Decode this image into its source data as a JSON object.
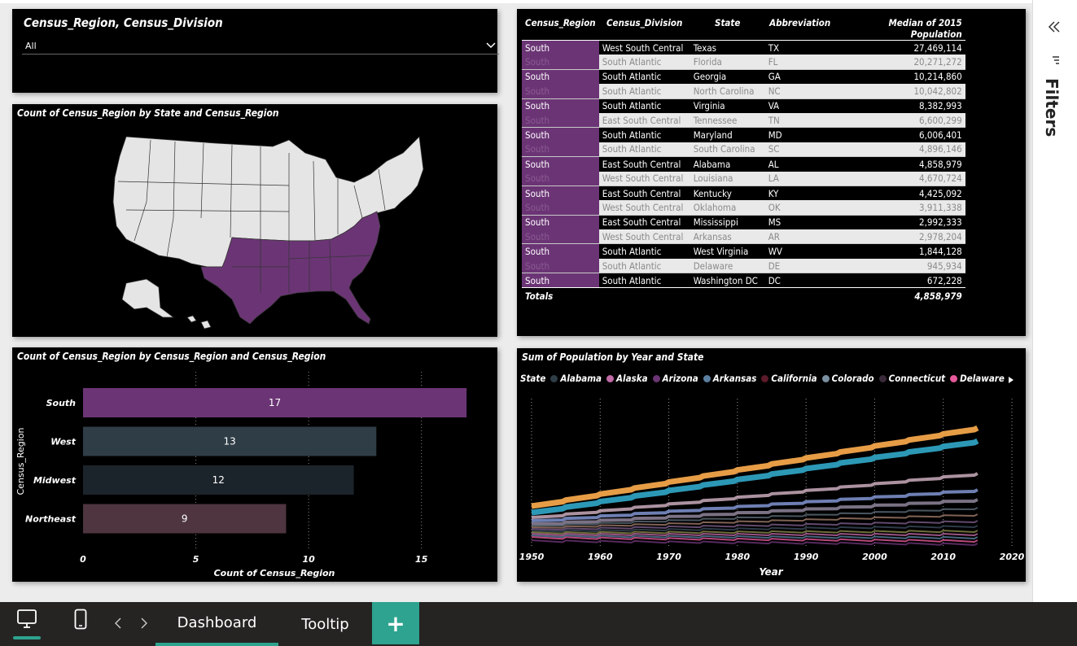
{
  "slicer": {
    "title": "Census_Region, Census_Division",
    "value": "All"
  },
  "map": {
    "title": "Count of Census_Region by State and Census_Region",
    "highlight_color": "#6b3575",
    "base_color": "#e5e5e5"
  },
  "table": {
    "headers": [
      "Census_Region",
      "Census_Division",
      "State",
      "Abbreviation",
      "Median of 2015 Population"
    ],
    "rows": [
      [
        "South",
        "West South Central",
        "Texas",
        "TX",
        "27,469,114"
      ],
      [
        "South",
        "South Atlantic",
        "Florida",
        "FL",
        "20,271,272"
      ],
      [
        "South",
        "South Atlantic",
        "Georgia",
        "GA",
        "10,214,860"
      ],
      [
        "South",
        "South Atlantic",
        "North Carolina",
        "NC",
        "10,042,802"
      ],
      [
        "South",
        "South Atlantic",
        "Virginia",
        "VA",
        "8,382,993"
      ],
      [
        "South",
        "East South Central",
        "Tennessee",
        "TN",
        "6,600,299"
      ],
      [
        "South",
        "South Atlantic",
        "Maryland",
        "MD",
        "6,006,401"
      ],
      [
        "South",
        "South Atlantic",
        "South Carolina",
        "SC",
        "4,896,146"
      ],
      [
        "South",
        "East South Central",
        "Alabama",
        "AL",
        "4,858,979"
      ],
      [
        "South",
        "West South Central",
        "Louisiana",
        "LA",
        "4,670,724"
      ],
      [
        "South",
        "East South Central",
        "Kentucky",
        "KY",
        "4,425,092"
      ],
      [
        "South",
        "West South Central",
        "Oklahoma",
        "OK",
        "3,911,338"
      ],
      [
        "South",
        "East South Central",
        "Mississippi",
        "MS",
        "2,992,333"
      ],
      [
        "South",
        "West South Central",
        "Arkansas",
        "AR",
        "2,978,204"
      ],
      [
        "South",
        "South Atlantic",
        "West Virginia",
        "WV",
        "1,844,128"
      ],
      [
        "South",
        "South Atlantic",
        "Delaware",
        "DE",
        "945,934"
      ],
      [
        "South",
        "South Atlantic",
        "Washington DC",
        "DC",
        "672,228"
      ]
    ],
    "totals_label": "Totals",
    "totals_value": "4,858,979"
  },
  "chart_data": [
    {
      "type": "bar",
      "title": "Count of Census_Region by Census_Region and Census_Region",
      "categories": [
        "South",
        "West",
        "Midwest",
        "Northeast"
      ],
      "values": [
        17,
        13,
        12,
        9
      ],
      "colors": [
        "#6b3575",
        "#2f3d47",
        "#1c242b",
        "#4e3540"
      ],
      "xlabel": "Count of Census_Region",
      "ylabel": "Census_Region",
      "xticks": [
        "0",
        "5",
        "10",
        "15"
      ],
      "xlim": [
        0,
        17.5
      ]
    },
    {
      "type": "area",
      "title": "Sum of Population by Year and State",
      "legend_title": "State",
      "legend": [
        {
          "name": "Alabama",
          "color": "#2f3d47"
        },
        {
          "name": "Alaska",
          "color": "#c06aa6"
        },
        {
          "name": "Arizona",
          "color": "#6b3575"
        },
        {
          "name": "Arkansas",
          "color": "#5b7fa0"
        },
        {
          "name": "California",
          "color": "#5c1a2a"
        },
        {
          "name": "Colorado",
          "color": "#7a8fa0"
        },
        {
          "name": "Connecticut",
          "color": "#3a2a3a"
        },
        {
          "name": "Delaware",
          "color": "#e65a9a"
        }
      ],
      "xlabel": "Year",
      "xticks": [
        "1950",
        "1960",
        "1970",
        "1980",
        "1990",
        "2000",
        "2010",
        "2020"
      ],
      "xlim": [
        1950,
        2020
      ]
    }
  ],
  "bottom": {
    "tabs": [
      "Dashboard",
      "Tooltip"
    ],
    "add_label": "+"
  },
  "filters_label": "Filters"
}
